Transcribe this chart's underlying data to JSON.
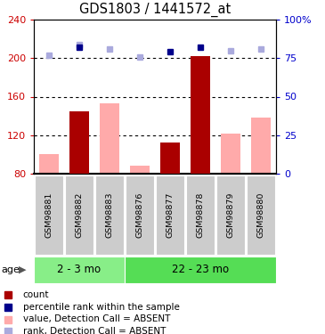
{
  "title": "GDS1803 / 1441572_at",
  "samples": [
    "GSM98881",
    "GSM98882",
    "GSM98883",
    "GSM98876",
    "GSM98877",
    "GSM98878",
    "GSM98879",
    "GSM98880"
  ],
  "groups": [
    {
      "label": "2 - 3 mo",
      "start": 0,
      "end": 3,
      "color": "#88ee88"
    },
    {
      "label": "22 - 23 mo",
      "start": 3,
      "end": 8,
      "color": "#55dd55"
    }
  ],
  "bar_values": [
    null,
    145,
    null,
    null,
    112,
    202,
    null,
    null
  ],
  "bar_color_present": "#aa0000",
  "absent_bar_values": [
    100,
    null,
    153,
    88,
    null,
    null,
    122,
    138
  ],
  "absent_bar_color": "#ffaaaa",
  "rank_present": [
    null,
    82,
    null,
    null,
    79,
    82,
    null,
    null
  ],
  "rank_absent": [
    77,
    84,
    81,
    76,
    null,
    null,
    80,
    81
  ],
  "rank_color_present": "#00008b",
  "rank_color_absent": "#aaaadd",
  "ymin": 80,
  "ymax": 240,
  "yticks_left": [
    80,
    120,
    160,
    200,
    240
  ],
  "yticks_right": [
    0,
    25,
    50,
    75,
    100
  ],
  "left_tick_color": "#cc0000",
  "right_tick_color": "#0000cc",
  "grid_values": [
    120,
    160,
    200
  ],
  "legend_items": [
    {
      "color": "#aa0000",
      "marker": "s",
      "label": "count"
    },
    {
      "color": "#00008b",
      "marker": "s",
      "label": "percentile rank within the sample"
    },
    {
      "color": "#ffaaaa",
      "marker": "s",
      "label": "value, Detection Call = ABSENT"
    },
    {
      "color": "#aaaadd",
      "marker": "s",
      "label": "rank, Detection Call = ABSENT"
    }
  ],
  "age_label": "age"
}
